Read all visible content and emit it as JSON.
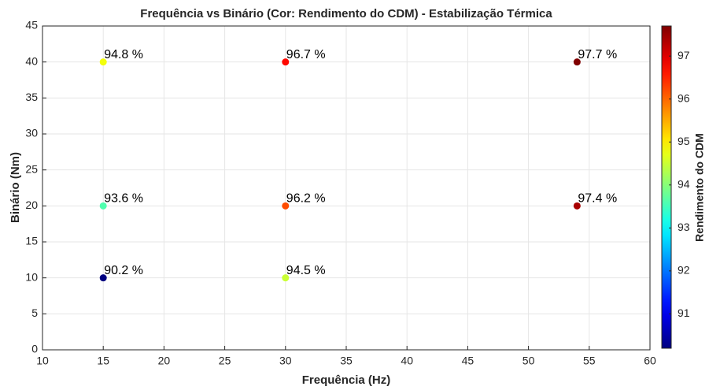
{
  "chart_data": {
    "type": "scatter",
    "title": "Frequência vs Binário (Cor: Rendimento do CDM) - Estabilização Térmica",
    "xlabel": "Frequência (Hz)",
    "ylabel": "Binário (Nm)",
    "x": [
      15,
      30,
      54,
      15,
      30,
      54,
      15,
      30
    ],
    "y": [
      40,
      40,
      40,
      20,
      20,
      20,
      10,
      10
    ],
    "color_values": [
      94.8,
      96.7,
      97.7,
      93.6,
      96.2,
      97.4,
      90.2,
      94.5
    ],
    "value_labels": [
      "94.8 %",
      "96.7 %",
      "97.7 %",
      "93.6 %",
      "96.2 %",
      "97.4 %",
      "90.2 %",
      "94.5 %"
    ],
    "xlim": [
      10,
      60
    ],
    "xticks": [
      10,
      15,
      20,
      25,
      30,
      35,
      40,
      45,
      50,
      55,
      60
    ],
    "ylim": [
      0,
      45
    ],
    "yticks": [
      0,
      5,
      10,
      15,
      20,
      25,
      30,
      35,
      40,
      45
    ],
    "grid": true,
    "colormap": "jet",
    "colorbar_label": "Rendimento do CDM",
    "clim": [
      90.2,
      97.7
    ],
    "cticks": [
      91,
      92,
      93,
      94,
      95,
      96,
      97
    ]
  }
}
